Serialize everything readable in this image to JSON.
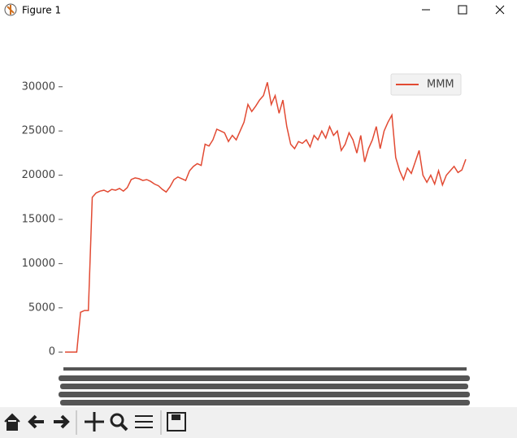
{
  "window_title": "Figure 1",
  "chart_data": {
    "type": "line",
    "legend_loc": "upper right",
    "series": [
      {
        "name": "MMM",
        "color": "#e24a33",
        "values": [
          0,
          0,
          0,
          0,
          4500,
          4700,
          4700,
          17500,
          18000,
          18200,
          18300,
          18100,
          18400,
          18300,
          18500,
          18200,
          18600,
          19500,
          19700,
          19600,
          19400,
          19500,
          19300,
          19000,
          18800,
          18400,
          18100,
          18700,
          19500,
          19800,
          19600,
          19400,
          20500,
          21000,
          21300,
          21100,
          23500,
          23300,
          24000,
          25200,
          25000,
          24800,
          23800,
          24500,
          24000,
          25000,
          26000,
          28000,
          27200,
          27800,
          28500,
          29000,
          30500,
          28000,
          29000,
          27000,
          28500,
          25500,
          23500,
          23000,
          23800,
          23600,
          24000,
          23200,
          24500,
          24000,
          25000,
          24200,
          25500,
          24500,
          25000,
          22800,
          23500,
          24800,
          24000,
          22500,
          24500,
          21500,
          23000,
          24000,
          25500,
          23000,
          25000,
          26000,
          26800,
          22000,
          20500,
          19500,
          20800,
          20200,
          21500,
          22800,
          20000,
          19200,
          20000,
          19000,
          20500,
          18900,
          20000,
          20500,
          21000,
          20300,
          20600,
          21800
        ]
      }
    ],
    "ylim": [
      -2000,
      32000
    ],
    "yticks": [
      0,
      5000,
      10000,
      15000,
      20000,
      25000,
      30000
    ]
  }
}
